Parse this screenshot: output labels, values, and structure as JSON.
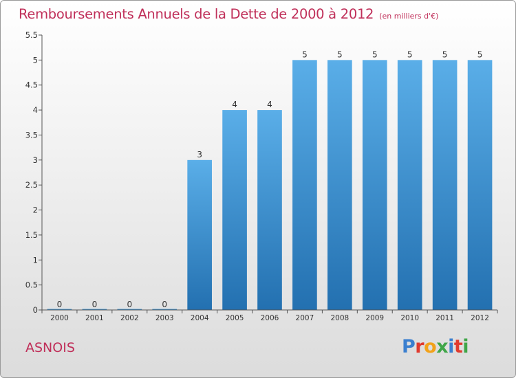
{
  "header": {
    "title": "Remboursements Annuels de la Dette de 2000 à 2012",
    "subtitle": "(en milliers d'€)"
  },
  "footer": {
    "commune": "ASNOIS",
    "logo_text": "Proxiti",
    "logo_colors": [
      "#3a7fcf",
      "#e03a2e",
      "#f2a21a",
      "#3fa648",
      "#3a7fcf",
      "#e03a2e",
      "#3fa648"
    ]
  },
  "chart_data": {
    "type": "bar",
    "title": "Remboursements Annuels de la Dette de 2000 à 2012",
    "subtitle": "(en milliers d'€)",
    "xlabel": "",
    "ylabel": "",
    "categories": [
      "2000",
      "2001",
      "2002",
      "2003",
      "2004",
      "2005",
      "2006",
      "2007",
      "2008",
      "2009",
      "2010",
      "2011",
      "2012"
    ],
    "values": [
      0,
      0,
      0,
      0,
      3,
      4,
      4,
      5,
      5,
      5,
      5,
      5,
      5
    ],
    "data_labels": [
      "0",
      "0",
      "0",
      "0",
      "3",
      "4",
      "4",
      "5",
      "5",
      "5",
      "5",
      "5",
      "5"
    ],
    "ylim": [
      0,
      5.5
    ],
    "yticks": [
      0,
      0.5,
      1,
      1.5,
      2,
      2.5,
      3,
      3.5,
      4,
      4.5,
      5,
      5.5
    ],
    "ytick_labels": [
      "0",
      "0.5",
      "1",
      "1.5",
      "2",
      "2.5",
      "3",
      "3.5",
      "4",
      "4.5",
      "5",
      "5.5"
    ],
    "grid": false,
    "legend": "none",
    "bar_color_top": "#5aaee8",
    "bar_color_bottom": "#2370b0",
    "axis_color": "#555555"
  }
}
